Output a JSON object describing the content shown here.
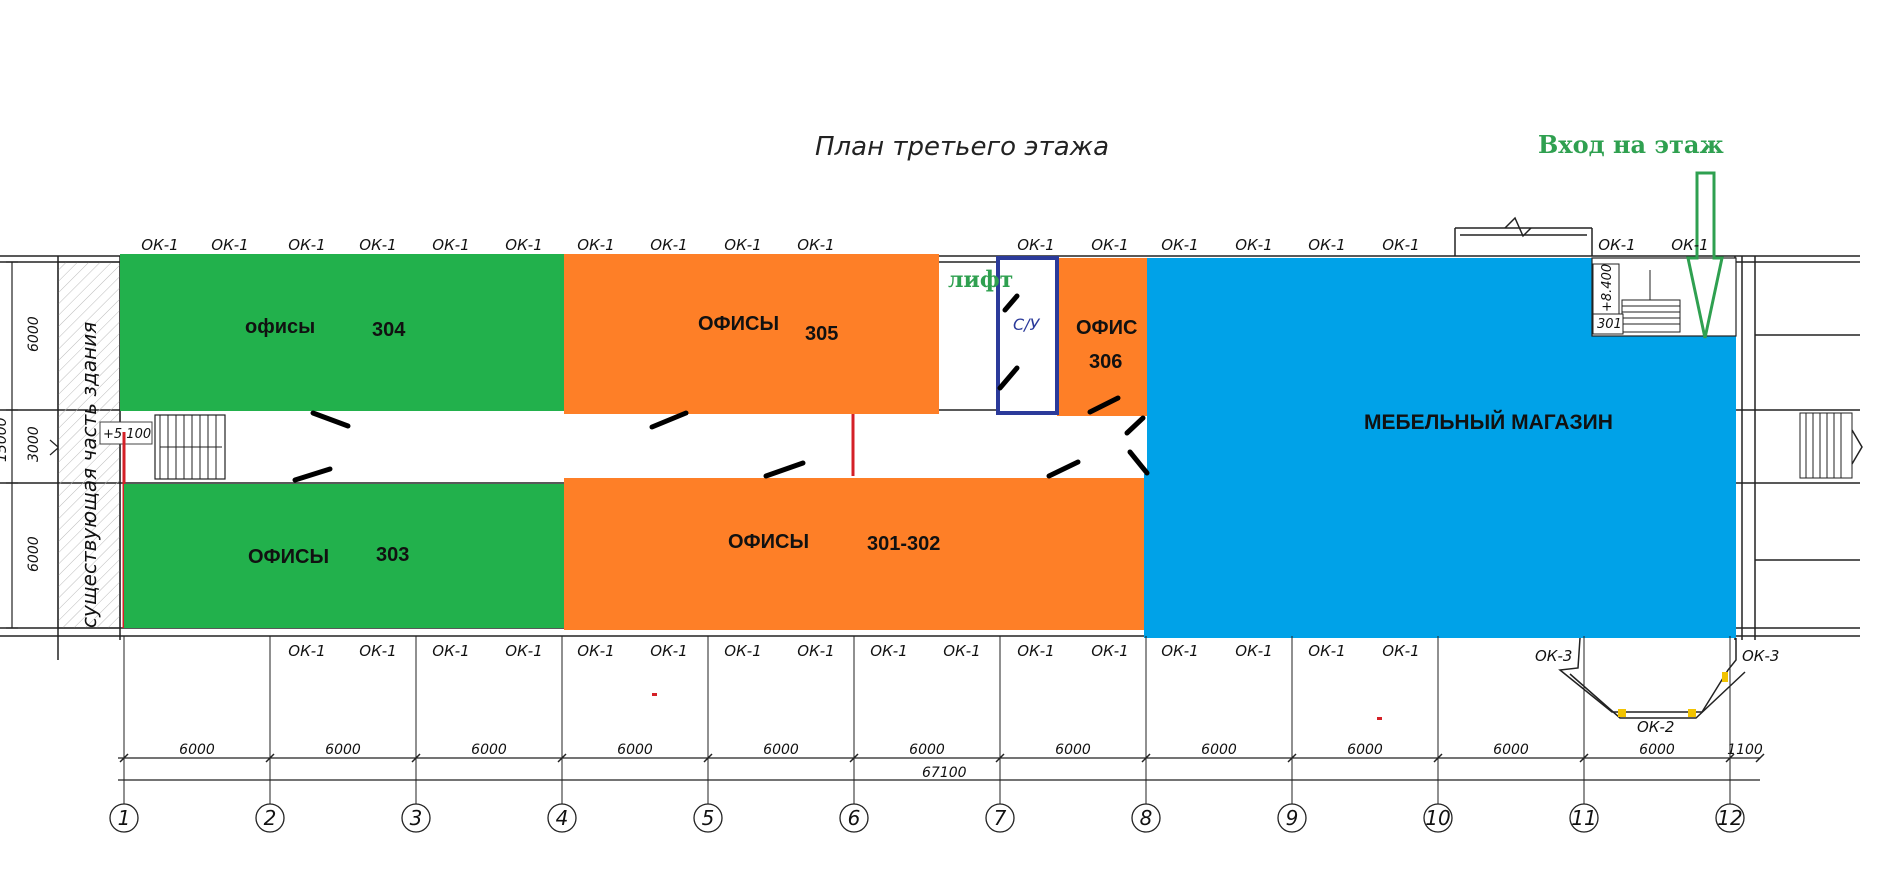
{
  "title": "План третьего этажа",
  "entry_label": "Вход на этаж",
  "side_label": "существующая часть здания",
  "window_label": "ОК-1",
  "ok2_label": "ОК-2",
  "ok3_label": "ОК-3",
  "level_left": "+5.100",
  "level_right": "+8.400",
  "stair_room": "301",
  "wc_label": "С/У",
  "lift_label": "лифт",
  "colors": {
    "office_green": "#22b14c",
    "office_orange": "#fe7f27",
    "shop_blue": "#00a2e8",
    "entry_arrow": "#2fa050",
    "wc_outline": "#2b3a9a",
    "accent_red": "#d42027"
  },
  "rooms": [
    {
      "name": "офисы",
      "number": "304",
      "color": "green"
    },
    {
      "name": "ОФИСЫ",
      "number": "303",
      "color": "green"
    },
    {
      "name": "ОФИСЫ",
      "number": "305",
      "color": "orange"
    },
    {
      "name": "ОФИСЫ",
      "number": "301-302",
      "color": "orange"
    },
    {
      "name": "ОФИС",
      "number": "306",
      "color": "orange"
    },
    {
      "name": "МЕБЕЛЬНЫЙ МАГАЗИН",
      "color": "blue"
    }
  ],
  "vertical_dims": [
    "6000",
    "3000",
    "6000",
    "15000"
  ],
  "span_dims": [
    "6000",
    "6000",
    "6000",
    "6000",
    "6000",
    "6000",
    "6000",
    "6000",
    "6000",
    "6000",
    "6000",
    "1100"
  ],
  "total_dim": "67100",
  "axes": [
    "1",
    "2",
    "3",
    "4",
    "5",
    "6",
    "7",
    "8",
    "9",
    "10",
    "11",
    "12"
  ]
}
